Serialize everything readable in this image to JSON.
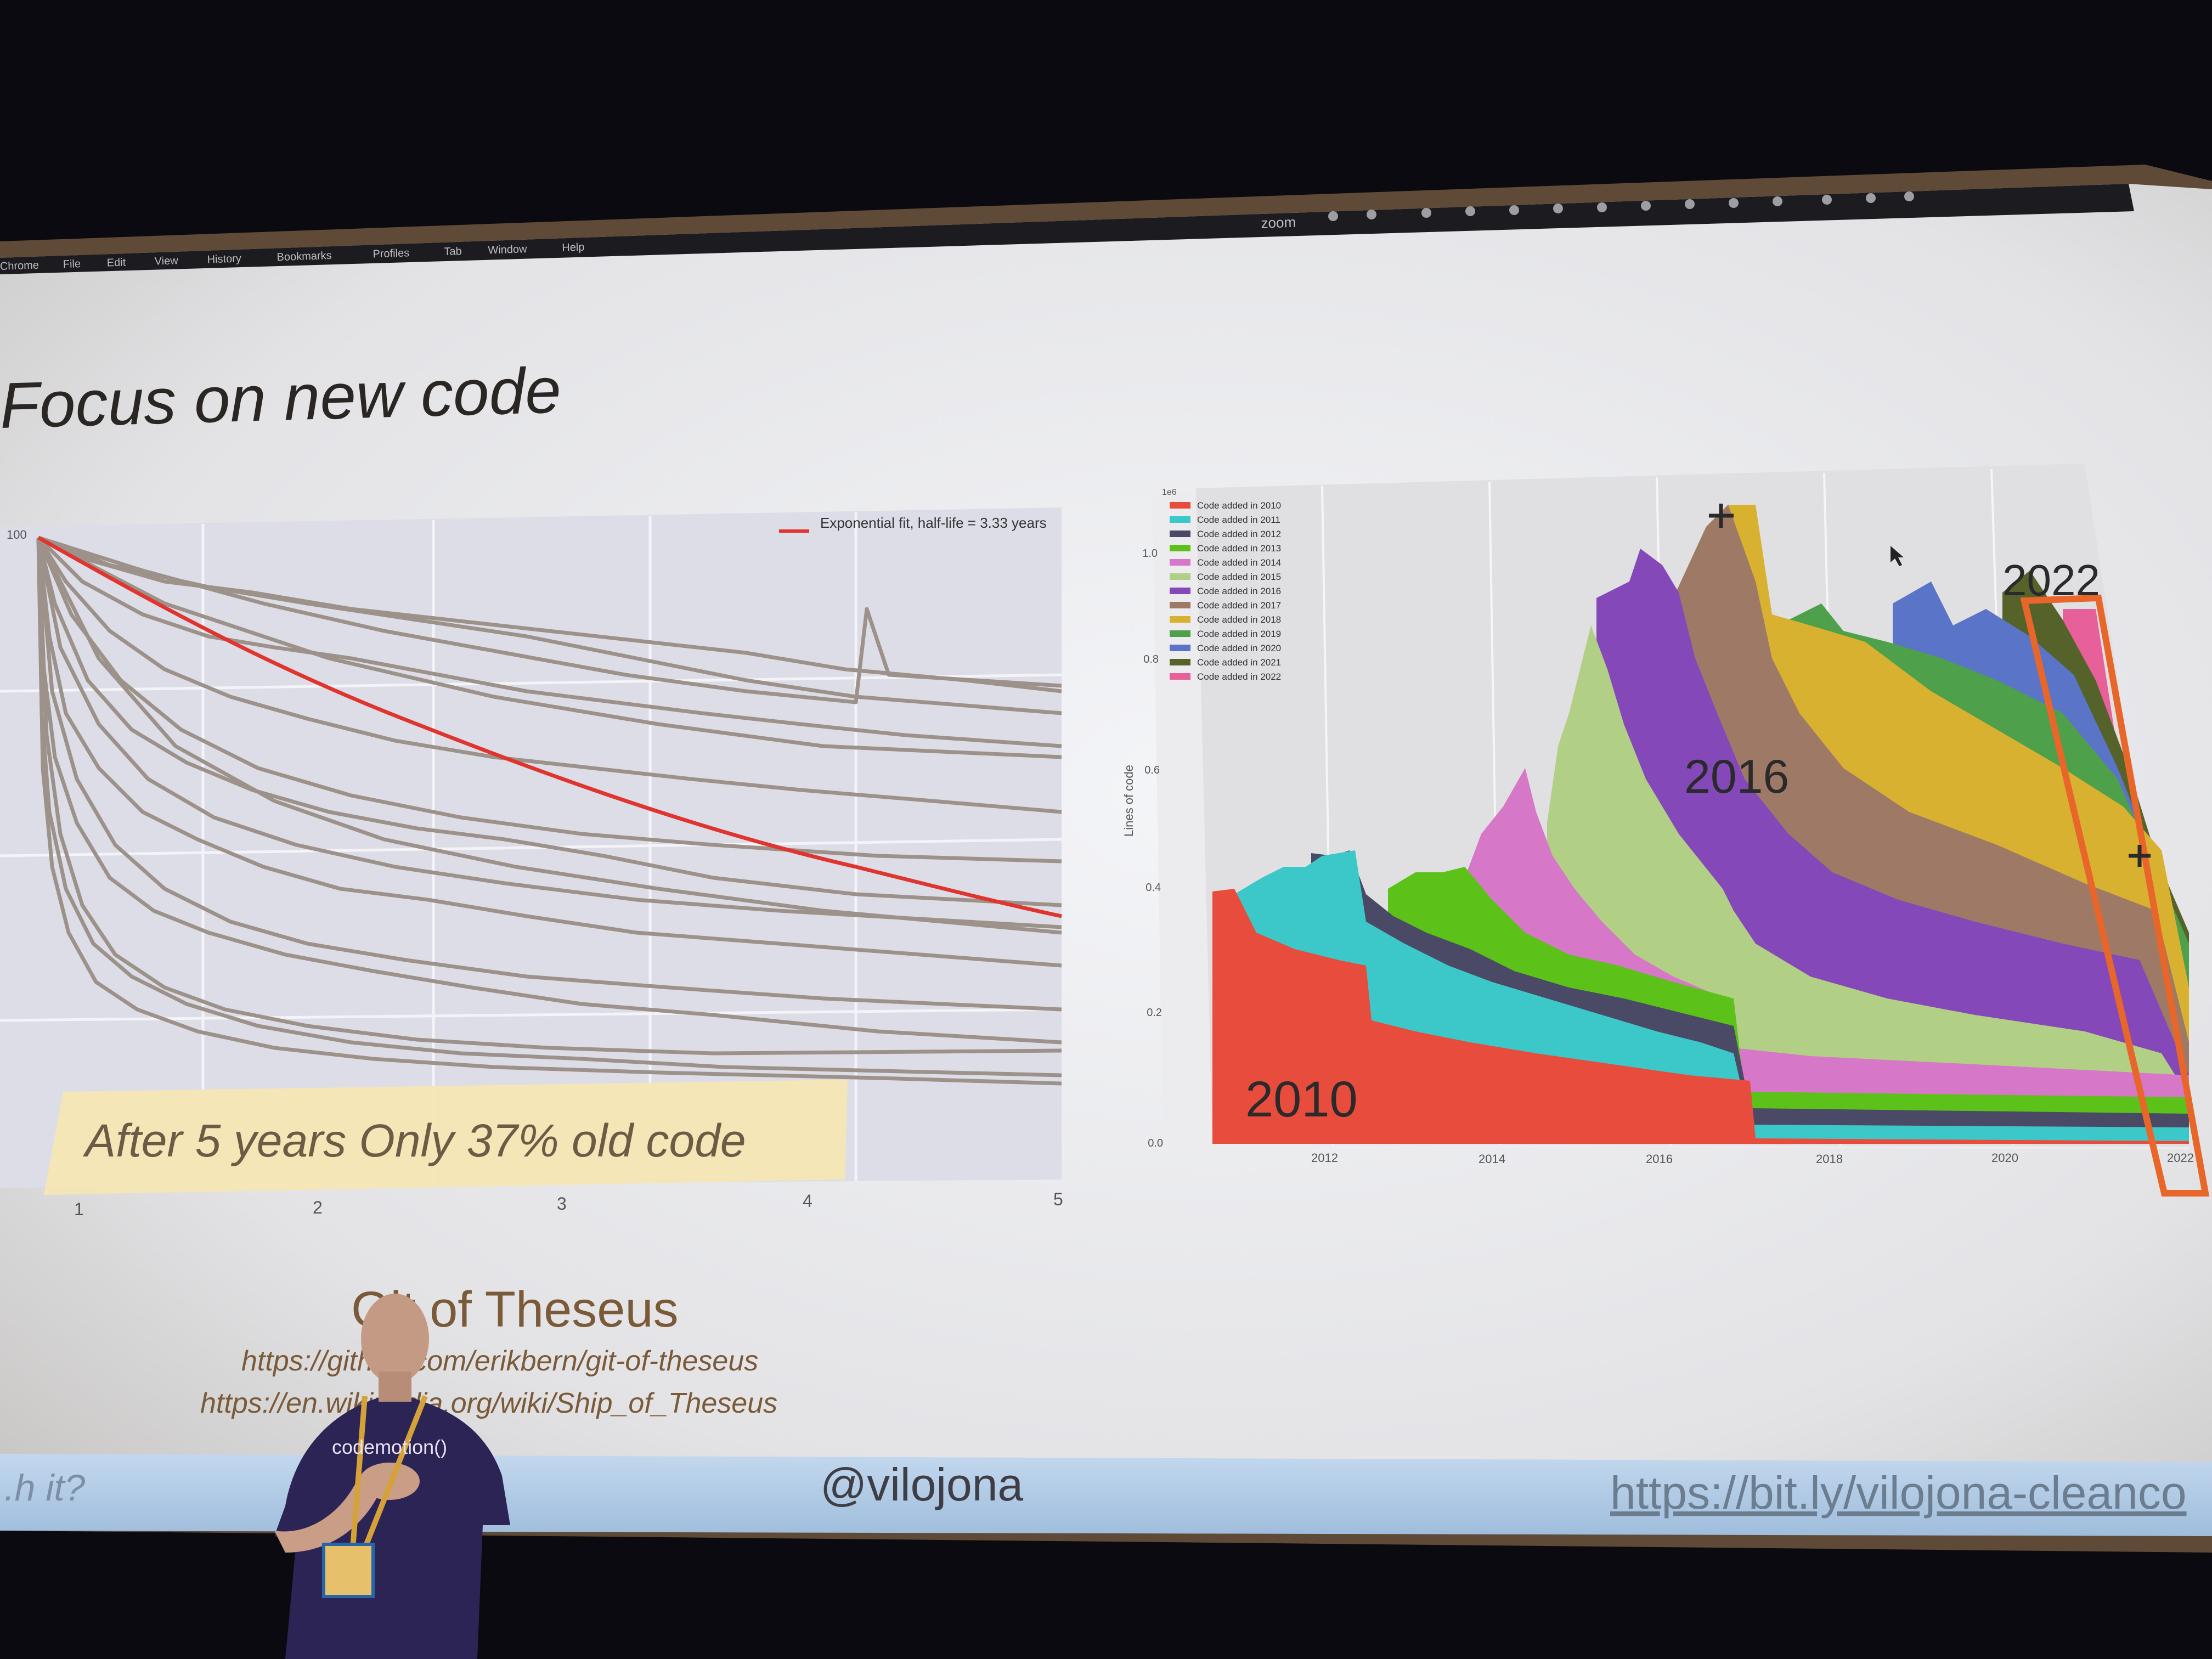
{
  "menubar": {
    "app": "Chrome",
    "items": [
      "File",
      "Edit",
      "View",
      "History",
      "Bookmarks",
      "Profiles",
      "Tab",
      "Window",
      "Help"
    ],
    "status_app": "zoom"
  },
  "slide": {
    "title": "Focus on new code",
    "callout": "After 5 years Only 37% old code",
    "source_title": "Git of Theseus",
    "link1": "https://github.com/erikbern/git-of-theseus",
    "link2": "https://en.wikipedia.org/wiki/Ship_of_Theseus",
    "footer_left": "...h it?",
    "handle": "@vilojona",
    "footer_link": "https://bit.ly/vilojona-cleanco",
    "colors": {
      "red_fit": "#e0342f",
      "callout_bg": "#f4e6b4",
      "highlight_box": "#e8662a"
    }
  },
  "left_chart": {
    "legend": "Exponential fit, half-life = 3.33 years",
    "y_top_label": "100",
    "x_ticks": [
      "1",
      "2",
      "3",
      "4",
      "5"
    ]
  },
  "right_chart": {
    "scale_label": "1e6",
    "ylabel": "Lines of code",
    "y_ticks": [
      "1.0",
      "0.8",
      "0.6",
      "0.4",
      "0.2",
      "0.0"
    ],
    "x_ticks": [
      "2012",
      "2014",
      "2016",
      "2018",
      "2020",
      "2022"
    ],
    "legend": [
      {
        "label": "Code added in 2010",
        "color": "#e84c3d"
      },
      {
        "label": "Code added in 2011",
        "color": "#3cc8c8"
      },
      {
        "label": "Code added in 2012",
        "color": "#4a4a66"
      },
      {
        "label": "Code added in 2013",
        "color": "#5cc21a"
      },
      {
        "label": "Code added in 2014",
        "color": "#d777c8"
      },
      {
        "label": "Code added in 2015",
        "color": "#b2cf86"
      },
      {
        "label": "Code added in 2016",
        "color": "#8448b8"
      },
      {
        "label": "Code added in 2017",
        "color": "#9e7a66"
      },
      {
        "label": "Code added in 2018",
        "color": "#d8b130"
      },
      {
        "label": "Code added in 2019",
        "color": "#4fa04a"
      },
      {
        "label": "Code added in 2020",
        "color": "#5a74c8"
      },
      {
        "label": "Code added in 2021",
        "color": "#55632a"
      },
      {
        "label": "Code added in 2022",
        "color": "#e8609a"
      }
    ],
    "annotations": [
      "2010",
      "2016",
      "2022"
    ]
  },
  "presenter": {
    "shirt_text": "codemotion()"
  }
}
